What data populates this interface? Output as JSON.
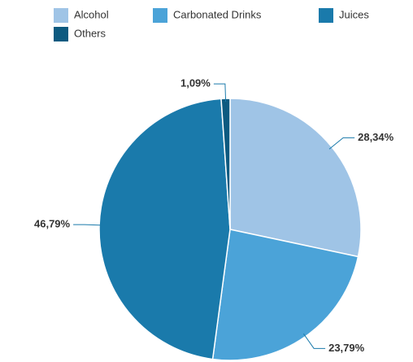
{
  "chart_data": {
    "type": "pie",
    "categories": [
      "Alcohol",
      "Carbonated Drinks",
      "Juices",
      "Others"
    ],
    "values": [
      28.34,
      23.79,
      46.79,
      1.09
    ],
    "value_labels": [
      "28,34%",
      "23,79%",
      "46,79%",
      "1,09%"
    ],
    "colors": [
      "#9fc4e6",
      "#4ba3d8",
      "#1a7aab",
      "#0d5a80"
    ]
  }
}
